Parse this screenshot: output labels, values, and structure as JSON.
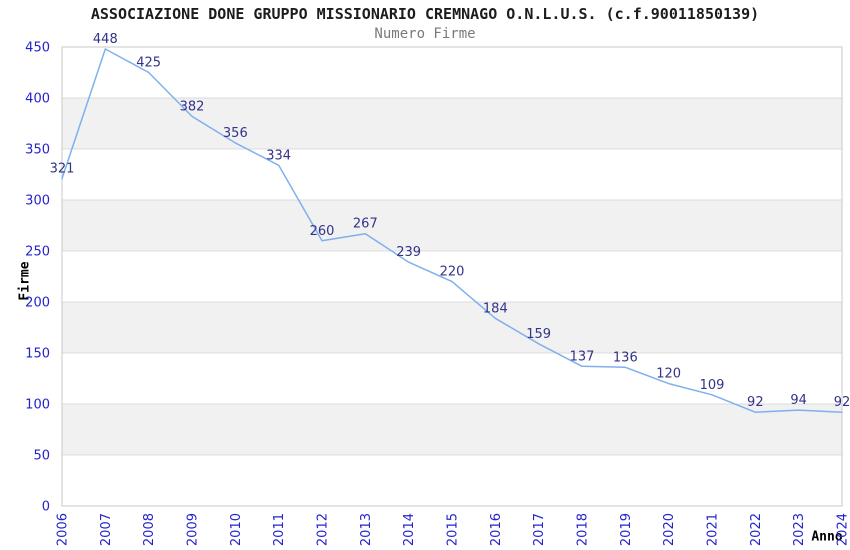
{
  "chart_data": {
    "type": "line",
    "title": "ASSOCIAZIONE DONE GRUPPO MISSIONARIO CREMNAGO O.N.L.U.S. (c.f.90011850139)",
    "subtitle": "Numero Firme",
    "xlabel": "Anno",
    "ylabel": "Firme",
    "categories": [
      "2006",
      "2007",
      "2008",
      "2009",
      "2010",
      "2011",
      "2012",
      "2013",
      "2014",
      "2015",
      "2016",
      "2017",
      "2018",
      "2019",
      "2020",
      "2021",
      "2022",
      "2023",
      "2024"
    ],
    "values": [
      321,
      448,
      425,
      382,
      356,
      334,
      260,
      267,
      239,
      220,
      184,
      159,
      137,
      136,
      120,
      109,
      92,
      94,
      92
    ],
    "ylim": [
      0,
      450
    ],
    "ytick_step": 50,
    "grid": true,
    "legend_position": "none",
    "colors": {
      "line": "#7fb0ee",
      "tick_label": "#2323cc",
      "data_label": "#333388",
      "band": "#f1f1f1",
      "gridline": "#dcdcdc",
      "plot_border": "#c8c8c8",
      "title": "#1c1c1c",
      "subtitle": "#7a7a7a",
      "axis_title": "#000000"
    }
  }
}
